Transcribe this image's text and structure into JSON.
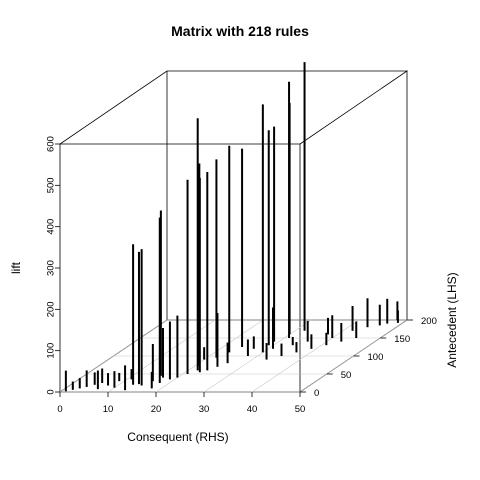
{
  "chart_data": {
    "type": "3d-matrix",
    "title": "Matrix with 218 rules",
    "xlabel": "Consequent (RHS)",
    "ylabel": "Antecedent (LHS)",
    "zlabel": "lift",
    "xlim": [
      0,
      50
    ],
    "ylim": [
      0,
      200
    ],
    "zlim": [
      0,
      600
    ],
    "x_ticks": [
      "0",
      "10",
      "20",
      "30",
      "40",
      "50"
    ],
    "y_ticks": [
      "0",
      "50",
      "100",
      "150",
      "200"
    ],
    "z_ticks": [
      "0",
      "100",
      "200",
      "300",
      "400",
      "500",
      "600"
    ],
    "grid": true,
    "points": [
      {
        "x": 1,
        "y": 2,
        "z": 50
      },
      {
        "x": 2,
        "y": 6,
        "z": 20
      },
      {
        "x": 3,
        "y": 10,
        "z": 25
      },
      {
        "x": 4,
        "y": 14,
        "z": 40
      },
      {
        "x": 5,
        "y": 20,
        "z": 30
      },
      {
        "x": 6,
        "y": 25,
        "z": 35
      },
      {
        "x": 7,
        "y": 8,
        "z": 45
      },
      {
        "x": 8,
        "y": 18,
        "z": 30
      },
      {
        "x": 9,
        "y": 30,
        "z": 20
      },
      {
        "x": 10,
        "y": 12,
        "z": 40
      },
      {
        "x": 11,
        "y": 35,
        "z": 25
      },
      {
        "x": 13,
        "y": 20,
        "z": 340
      },
      {
        "x": 13,
        "y": 5,
        "z": 60
      },
      {
        "x": 14,
        "y": 22,
        "z": 320
      },
      {
        "x": 15,
        "y": 18,
        "z": 330
      },
      {
        "x": 16,
        "y": 45,
        "z": 400
      },
      {
        "x": 16,
        "y": 30,
        "z": 90
      },
      {
        "x": 17,
        "y": 40,
        "z": 120
      },
      {
        "x": 18,
        "y": 25,
        "z": 400
      },
      {
        "x": 18,
        "y": 10,
        "z": 40
      },
      {
        "x": 19,
        "y": 35,
        "z": 140
      },
      {
        "x": 20,
        "y": 40,
        "z": 150
      },
      {
        "x": 20,
        "y": 90,
        "z": 30
      },
      {
        "x": 21,
        "y": 50,
        "z": 470
      },
      {
        "x": 21,
        "y": 72,
        "z": 490
      },
      {
        "x": 22,
        "y": 60,
        "z": 610
      },
      {
        "x": 22,
        "y": 95,
        "z": 480
      },
      {
        "x": 23,
        "y": 55,
        "z": 470
      },
      {
        "x": 23,
        "y": 110,
        "z": 500
      },
      {
        "x": 24,
        "y": 60,
        "z": 480
      },
      {
        "x": 24,
        "y": 125,
        "z": 480
      },
      {
        "x": 25,
        "y": 70,
        "z": 130
      },
      {
        "x": 26,
        "y": 80,
        "z": 50
      },
      {
        "x": 27,
        "y": 120,
        "z": 30
      },
      {
        "x": 28,
        "y": 100,
        "z": 40
      },
      {
        "x": 29,
        "y": 130,
        "z": 520
      },
      {
        "x": 29,
        "y": 140,
        "z": 520
      },
      {
        "x": 30,
        "y": 110,
        "z": 600
      },
      {
        "x": 30,
        "y": 160,
        "z": 560
      },
      {
        "x": 31,
        "y": 150,
        "z": 620
      },
      {
        "x": 31,
        "y": 120,
        "z": 100
      },
      {
        "x": 32,
        "y": 170,
        "z": 650
      },
      {
        "x": 33,
        "y": 90,
        "z": 40
      },
      {
        "x": 34,
        "y": 130,
        "z": 20
      },
      {
        "x": 35,
        "y": 100,
        "z": 30
      },
      {
        "x": 36,
        "y": 140,
        "z": 50
      },
      {
        "x": 37,
        "y": 110,
        "z": 25
      },
      {
        "x": 38,
        "y": 160,
        "z": 40
      },
      {
        "x": 39,
        "y": 120,
        "z": 35
      },
      {
        "x": 40,
        "y": 150,
        "z": 55
      },
      {
        "x": 41,
        "y": 130,
        "z": 30
      },
      {
        "x": 42,
        "y": 170,
        "z": 60
      },
      {
        "x": 43,
        "y": 140,
        "z": 45
      },
      {
        "x": 44,
        "y": 180,
        "z": 70
      },
      {
        "x": 45,
        "y": 150,
        "z": 40
      },
      {
        "x": 46,
        "y": 185,
        "z": 50
      },
      {
        "x": 47,
        "y": 190,
        "z": 60
      },
      {
        "x": 48,
        "y": 200,
        "z": 45
      },
      {
        "x": 49,
        "y": 192,
        "z": 30
      }
    ]
  }
}
